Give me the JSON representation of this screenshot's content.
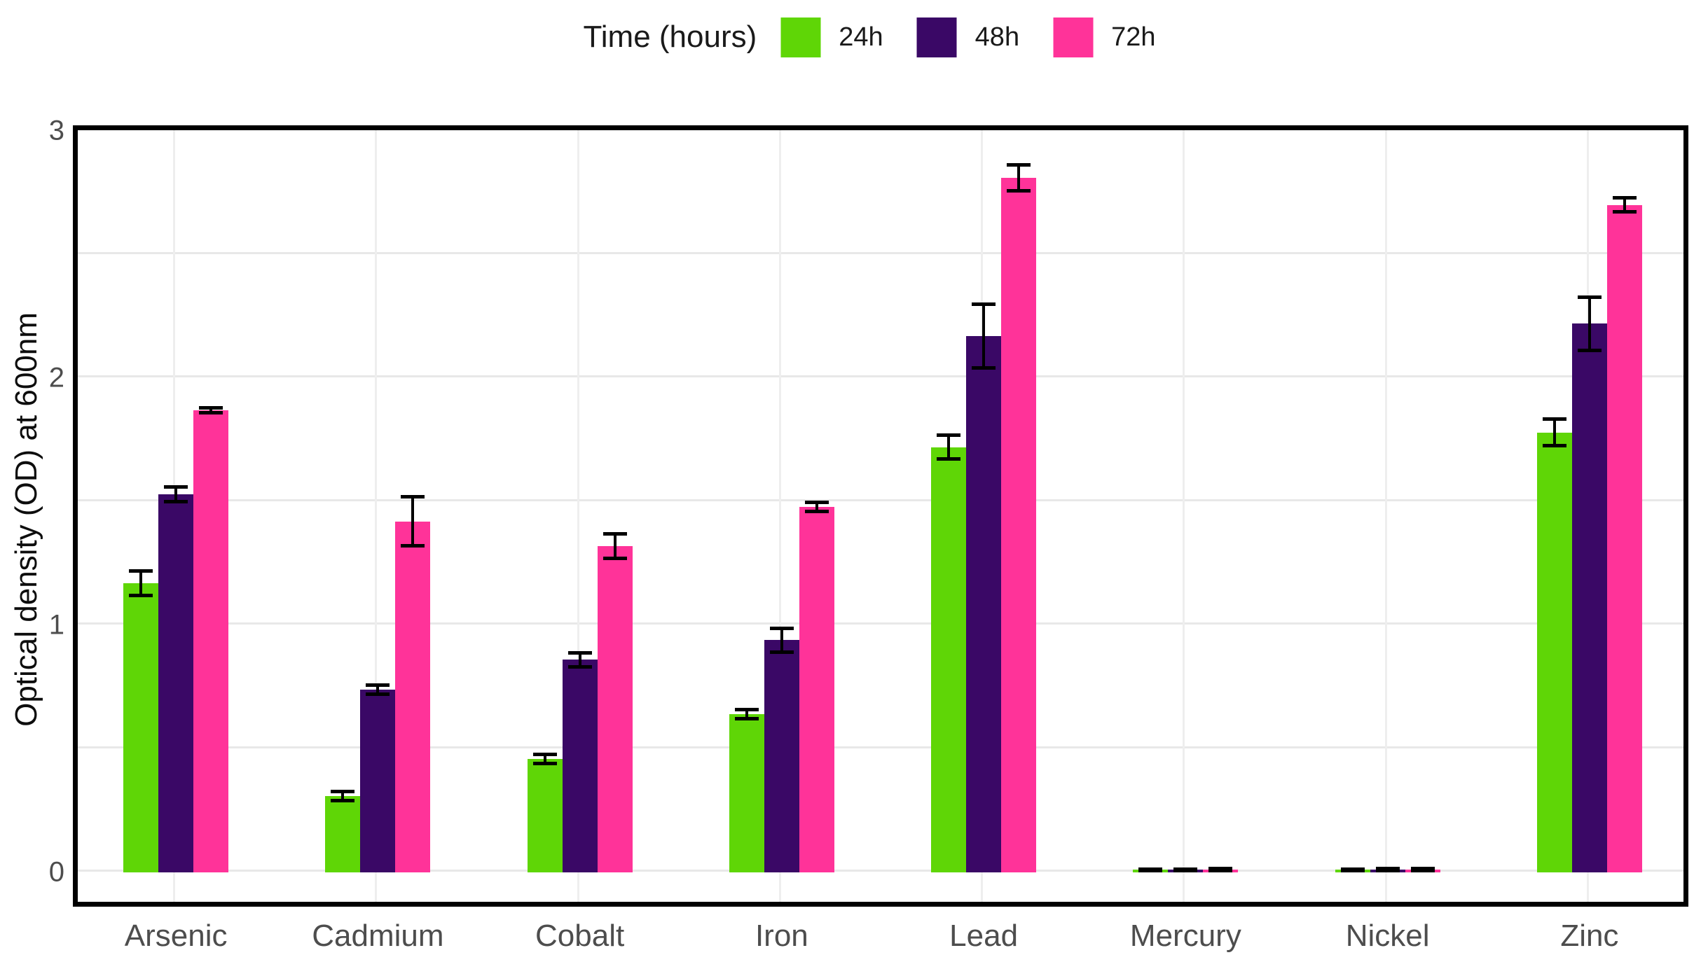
{
  "chart_data": {
    "type": "bar",
    "legend_title": "Time (hours)",
    "legend_position": "top",
    "ylabel": "Optical density (OD) at 600nm",
    "xlabel": "",
    "categories": [
      "Arsenic",
      "Cadmium",
      "Cobalt",
      "Iron",
      "Lead",
      "Mercury",
      "Nickel",
      "Zinc"
    ],
    "series": [
      {
        "name": "24h",
        "color": "#5FD606",
        "values": [
          1.17,
          0.31,
          0.46,
          0.64,
          1.72,
          0.01,
          0.01,
          1.78
        ],
        "errors": [
          0.05,
          0.02,
          0.02,
          0.02,
          0.05,
          0.005,
          0.005,
          0.055
        ]
      },
      {
        "name": "48h",
        "color": "#3A0866",
        "values": [
          1.53,
          0.74,
          0.86,
          0.94,
          2.17,
          0.01,
          0.012,
          2.22
        ],
        "errors": [
          0.03,
          0.02,
          0.03,
          0.05,
          0.13,
          0.005,
          0.005,
          0.11
        ]
      },
      {
        "name": "72h",
        "color": "#FF3399",
        "values": [
          1.87,
          1.42,
          1.32,
          1.48,
          2.81,
          0.012,
          0.012,
          2.7
        ],
        "errors": [
          0.012,
          0.1,
          0.05,
          0.02,
          0.055,
          0.006,
          0.006,
          0.03
        ]
      }
    ],
    "yticks": [
      0,
      1,
      2,
      3
    ],
    "ylim": [
      0,
      3
    ],
    "gridline_step": 0.5,
    "grid": true,
    "error_bars": true
  },
  "colors": {
    "panel_border": "#000000",
    "h_gridline": "#e8e8e8",
    "v_gridline": "#eeeeee",
    "axis_text": "#4d4d4d",
    "error_bar": "#000000",
    "background": "#ffffff"
  }
}
